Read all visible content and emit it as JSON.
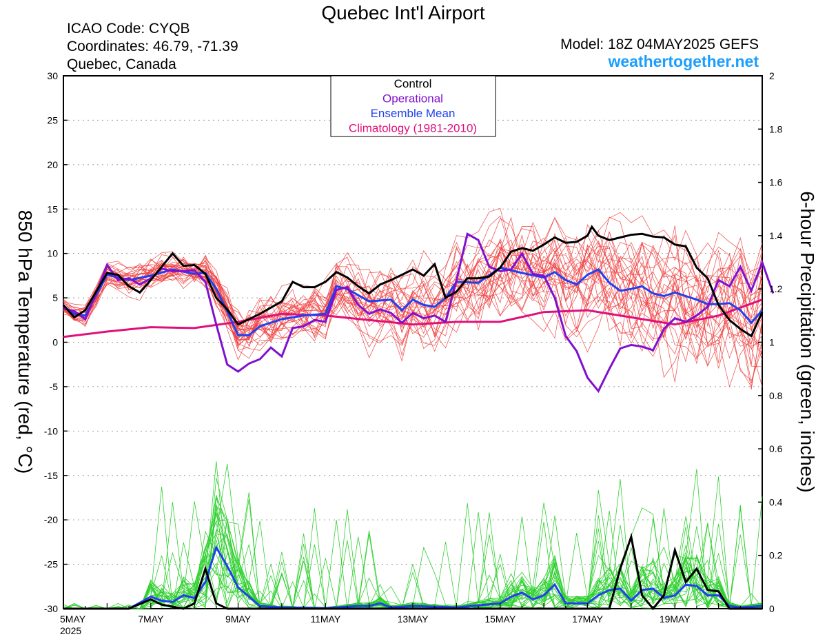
{
  "chart_data": {
    "type": "line",
    "title": "Quebec Int'l Airport",
    "info_left": [
      "ICAO Code: CYQB",
      "Coordinates: 46.79, -71.39",
      "Quebec, Canada"
    ],
    "model": "Model: 18Z 04MAY2025 GEFS",
    "site": "weathertogether.net",
    "ylabel_left": "850 hPa Temperature (red, °C)",
    "ylabel_right": "6-hour Precipitation (green, inches)",
    "y_left_range": [
      -30,
      30
    ],
    "y_right_range": [
      0,
      2
    ],
    "x_range_days": [
      0,
      16
    ],
    "left_ticks": [
      "30",
      "25",
      "20",
      "15",
      "10",
      "5",
      "0",
      "-5",
      "-10",
      "-15",
      "-20",
      "-25",
      "-30"
    ],
    "right_ticks": [
      "2",
      "1.8",
      "1.6",
      "1.4",
      "1.2",
      "1",
      "0.8",
      "0.6",
      "0.4",
      "0.2",
      "0"
    ],
    "x_ticks": [
      {
        "day": 0,
        "label": "5MAY",
        "sub": "2025"
      },
      {
        "day": 2,
        "label": "7MAY"
      },
      {
        "day": 4,
        "label": "9MAY"
      },
      {
        "day": 6,
        "label": "11MAY"
      },
      {
        "day": 8,
        "label": "13MAY"
      },
      {
        "day": 10,
        "label": "15MAY"
      },
      {
        "day": 12,
        "label": "17MAY"
      },
      {
        "day": 14,
        "label": "19MAY"
      }
    ],
    "legend": [
      {
        "label": "Control",
        "color": "#000000"
      },
      {
        "label": "Operational",
        "color": "#8010d0"
      },
      {
        "label": "Ensemble Mean",
        "color": "#2040f0"
      },
      {
        "label": "Climatology (1981-2010)",
        "color": "#e0107a"
      }
    ],
    "colors": {
      "members_temp": "#f04040",
      "members_precip": "#30d030",
      "control": "#000000",
      "operational": "#8010d0",
      "mean": "#2040f0",
      "climatology": "#e0107a",
      "site": "#1a9fff"
    },
    "series": {
      "climatology": [
        [
          0,
          0.6
        ],
        [
          1,
          1.2
        ],
        [
          2,
          1.7
        ],
        [
          3,
          1.6
        ],
        [
          4,
          2.3
        ],
        [
          5,
          3.2
        ],
        [
          6,
          3.0
        ],
        [
          7,
          2.5
        ],
        [
          8,
          2.0
        ],
        [
          9,
          2.3
        ],
        [
          10,
          2.3
        ],
        [
          11,
          3.4
        ],
        [
          12,
          3.6
        ],
        [
          13,
          2.8
        ],
        [
          14,
          2.0
        ],
        [
          15,
          3.0
        ],
        [
          16,
          4.8
        ]
      ],
      "control_temp": [
        [
          0,
          4.2
        ],
        [
          0.25,
          2.8
        ],
        [
          0.5,
          3.6
        ],
        [
          1,
          7.8
        ],
        [
          1.25,
          7.6
        ],
        [
          1.5,
          6.3
        ],
        [
          1.75,
          5.6
        ],
        [
          2,
          7.0
        ],
        [
          2.5,
          10.0
        ],
        [
          2.75,
          8.6
        ],
        [
          3,
          8.7
        ],
        [
          3.25,
          7.7
        ],
        [
          3.5,
          5.0
        ],
        [
          3.75,
          3.7
        ],
        [
          4,
          2.0
        ],
        [
          4.5,
          3.2
        ],
        [
          5,
          4.6
        ],
        [
          5.25,
          6.8
        ],
        [
          5.5,
          6.2
        ],
        [
          5.75,
          6.2
        ],
        [
          6,
          6.8
        ],
        [
          6.25,
          7.9
        ],
        [
          6.5,
          7.3
        ],
        [
          6.75,
          6.3
        ],
        [
          7,
          5.5
        ],
        [
          7.25,
          6.5
        ],
        [
          7.5,
          7.0
        ],
        [
          7.75,
          7.6
        ],
        [
          8,
          8.2
        ],
        [
          8.25,
          7.5
        ],
        [
          8.5,
          8.8
        ],
        [
          8.75,
          5.0
        ],
        [
          9,
          5.7
        ],
        [
          9.25,
          7.2
        ],
        [
          9.5,
          7.2
        ],
        [
          9.75,
          7.4
        ],
        [
          10,
          8.4
        ],
        [
          10.25,
          10.2
        ],
        [
          10.5,
          10.6
        ],
        [
          10.75,
          10.3
        ],
        [
          11,
          11.0
        ],
        [
          11.25,
          11.8
        ],
        [
          11.5,
          11.2
        ],
        [
          11.75,
          11.3
        ],
        [
          12,
          12.0
        ],
        [
          12.1,
          13.0
        ],
        [
          12.25,
          12.0
        ],
        [
          12.5,
          11.5
        ],
        [
          12.75,
          11.8
        ],
        [
          13,
          12.1
        ],
        [
          13.25,
          12.2
        ],
        [
          13.5,
          11.9
        ],
        [
          13.75,
          11.8
        ],
        [
          14,
          11.0
        ],
        [
          14.25,
          10.8
        ],
        [
          14.5,
          8.4
        ],
        [
          14.75,
          7.2
        ],
        [
          15,
          4.2
        ],
        [
          15.25,
          2.5
        ],
        [
          15.5,
          1.5
        ],
        [
          15.75,
          0.7
        ],
        [
          16,
          3.4
        ]
      ],
      "operational_temp": [
        [
          0,
          3.8
        ],
        [
          0.25,
          3.5
        ],
        [
          0.5,
          2.6
        ],
        [
          0.75,
          5.5
        ],
        [
          1,
          8.7
        ],
        [
          1.25,
          7.0
        ],
        [
          1.5,
          7.2
        ],
        [
          1.75,
          6.5
        ],
        [
          2,
          7.2
        ],
        [
          2.25,
          8.3
        ],
        [
          2.5,
          8.0
        ],
        [
          2.75,
          8.0
        ],
        [
          3,
          8.1
        ],
        [
          3.25,
          6.8
        ],
        [
          3.5,
          2.0
        ],
        [
          3.75,
          -2.5
        ],
        [
          4,
          -3.3
        ],
        [
          4.25,
          -2.4
        ],
        [
          4.5,
          -1.9
        ],
        [
          4.75,
          -0.6
        ],
        [
          5,
          -1.6
        ],
        [
          5.25,
          1.6
        ],
        [
          5.5,
          1.8
        ],
        [
          5.75,
          2.5
        ],
        [
          6,
          2.3
        ],
        [
          6.25,
          5.9
        ],
        [
          6.5,
          6.2
        ],
        [
          6.75,
          4.2
        ],
        [
          7,
          3.2
        ],
        [
          7.25,
          3.7
        ],
        [
          7.5,
          3.3
        ],
        [
          7.75,
          2.2
        ],
        [
          8,
          3.3
        ],
        [
          8.25,
          2.7
        ],
        [
          8.5,
          3.0
        ],
        [
          8.75,
          2.3
        ],
        [
          9,
          7.0
        ],
        [
          9.25,
          12.2
        ],
        [
          9.5,
          11.5
        ],
        [
          9.75,
          8.5
        ],
        [
          10,
          8.0
        ],
        [
          10.25,
          8.2
        ],
        [
          10.5,
          10.0
        ],
        [
          10.75,
          7.7
        ],
        [
          11,
          7.5
        ],
        [
          11.25,
          5.0
        ],
        [
          11.5,
          0.7
        ],
        [
          11.75,
          -1.0
        ],
        [
          12,
          -4.0
        ],
        [
          12.25,
          -5.5
        ],
        [
          12.5,
          -3.0
        ],
        [
          12.75,
          -0.7
        ],
        [
          13,
          -0.3
        ],
        [
          13.25,
          -0.5
        ],
        [
          13.5,
          -0.9
        ],
        [
          13.75,
          1.5
        ],
        [
          14,
          2.7
        ],
        [
          14.25,
          2.3
        ],
        [
          14.5,
          3.0
        ],
        [
          14.75,
          4.0
        ],
        [
          15,
          7.0
        ],
        [
          15.25,
          6.3
        ],
        [
          15.5,
          8.5
        ],
        [
          15.75,
          5.8
        ],
        [
          16,
          9.0
        ],
        [
          16.25,
          5.5
        ]
      ],
      "mean_temp": [
        [
          0,
          4.0
        ],
        [
          0.25,
          3.2
        ],
        [
          0.5,
          3.0
        ],
        [
          1,
          7.6
        ],
        [
          1.5,
          7.0
        ],
        [
          2,
          7.5
        ],
        [
          2.5,
          8.2
        ],
        [
          3,
          7.7
        ],
        [
          3.25,
          7.8
        ],
        [
          3.5,
          6.0
        ],
        [
          3.75,
          3.5
        ],
        [
          4,
          0.8
        ],
        [
          4.25,
          0.8
        ],
        [
          4.5,
          1.8
        ],
        [
          5,
          2.6
        ],
        [
          5.5,
          3.0
        ],
        [
          6,
          3.2
        ],
        [
          6.25,
          6.3
        ],
        [
          6.5,
          6.0
        ],
        [
          7,
          4.6
        ],
        [
          7.5,
          4.8
        ],
        [
          7.75,
          3.6
        ],
        [
          8,
          4.8
        ],
        [
          8.25,
          4.2
        ],
        [
          8.5,
          4.0
        ],
        [
          8.75,
          5.0
        ],
        [
          9,
          6.8
        ],
        [
          9.5,
          6.7
        ],
        [
          10,
          8.4
        ],
        [
          10.5,
          7.8
        ],
        [
          11,
          7.3
        ],
        [
          11.25,
          7.9
        ],
        [
          11.5,
          7.0
        ],
        [
          11.75,
          6.5
        ],
        [
          12,
          7.6
        ],
        [
          12.25,
          8.2
        ],
        [
          12.5,
          6.7
        ],
        [
          12.75,
          5.8
        ],
        [
          13,
          6.0
        ],
        [
          13.25,
          6.3
        ],
        [
          13.5,
          5.5
        ],
        [
          13.75,
          5.2
        ],
        [
          14,
          5.6
        ],
        [
          14.25,
          5.2
        ],
        [
          14.5,
          4.8
        ],
        [
          14.75,
          4.3
        ],
        [
          15,
          4.3
        ],
        [
          15.25,
          4.4
        ],
        [
          15.5,
          3.6
        ],
        [
          15.75,
          2.2
        ],
        [
          16,
          3.6
        ]
      ],
      "control_precip": [
        [
          0,
          0
        ],
        [
          1.5,
          0
        ],
        [
          2,
          0.035
        ],
        [
          2.25,
          0.015
        ],
        [
          2.75,
          0
        ],
        [
          3,
          0.02
        ],
        [
          3.25,
          0.15
        ],
        [
          3.5,
          0.02
        ],
        [
          3.75,
          0
        ],
        [
          5,
          0
        ],
        [
          11.5,
          0
        ],
        [
          12.5,
          0
        ],
        [
          12.75,
          0.15
        ],
        [
          13,
          0.27
        ],
        [
          13.25,
          0.05
        ],
        [
          13.5,
          0
        ],
        [
          13.75,
          0.05
        ],
        [
          14,
          0.22
        ],
        [
          14.25,
          0.1
        ],
        [
          14.5,
          0.15
        ],
        [
          14.75,
          0.07
        ],
        [
          15,
          0.065
        ],
        [
          15.25,
          0
        ],
        [
          16,
          0
        ]
      ],
      "mean_precip": [
        [
          0,
          0
        ],
        [
          1.5,
          0
        ],
        [
          2,
          0.045
        ],
        [
          2.25,
          0.03
        ],
        [
          2.5,
          0.025
        ],
        [
          2.75,
          0.05
        ],
        [
          3,
          0.04
        ],
        [
          3.25,
          0.1
        ],
        [
          3.5,
          0.23
        ],
        [
          3.75,
          0.16
        ],
        [
          4,
          0.08
        ],
        [
          4.5,
          0.01
        ],
        [
          5,
          0.005
        ],
        [
          6,
          0.002
        ],
        [
          6.75,
          0.01
        ],
        [
          7,
          0.01
        ],
        [
          7.25,
          0.02
        ],
        [
          7.5,
          0.005
        ],
        [
          8,
          0.01
        ],
        [
          9,
          0.005
        ],
        [
          10,
          0.02
        ],
        [
          10.25,
          0.045
        ],
        [
          10.5,
          0.06
        ],
        [
          10.75,
          0.035
        ],
        [
          11,
          0.05
        ],
        [
          11.25,
          0.09
        ],
        [
          11.5,
          0.02
        ],
        [
          12,
          0.02
        ],
        [
          12.25,
          0.05
        ],
        [
          12.5,
          0.07
        ],
        [
          12.75,
          0.075
        ],
        [
          13,
          0.03
        ],
        [
          13.25,
          0.07
        ],
        [
          13.5,
          0.075
        ],
        [
          13.75,
          0.04
        ],
        [
          14,
          0.05
        ],
        [
          14.25,
          0.09
        ],
        [
          14.5,
          0.085
        ],
        [
          14.75,
          0.05
        ],
        [
          15,
          0.05
        ],
        [
          15.25,
          0.01
        ],
        [
          15.5,
          0.005
        ],
        [
          16,
          0.01
        ]
      ]
    }
  }
}
